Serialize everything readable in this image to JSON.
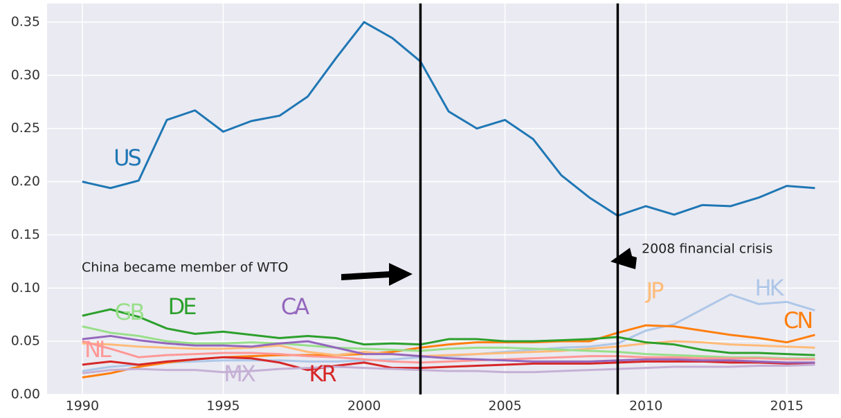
{
  "chart_data": {
    "type": "line",
    "x": [
      1990,
      1991,
      1992,
      1993,
      1994,
      1995,
      1996,
      1997,
      1998,
      1999,
      2000,
      2001,
      2002,
      2003,
      2004,
      2005,
      2006,
      2007,
      2008,
      2009,
      2010,
      2011,
      2012,
      2013,
      2014,
      2015,
      2016
    ],
    "series": [
      {
        "name": "US",
        "color": "#1f77b4",
        "values": [
          0.2,
          0.194,
          0.201,
          0.258,
          0.267,
          0.247,
          0.257,
          0.262,
          0.28,
          0.316,
          0.35,
          0.335,
          0.313,
          0.266,
          0.25,
          0.258,
          0.24,
          0.206,
          0.185,
          0.168,
          0.177,
          0.169,
          0.178,
          0.177,
          0.185,
          0.196,
          0.194
        ]
      },
      {
        "name": "HK",
        "color": "#aec7e8",
        "values": [
          0.022,
          0.026,
          0.028,
          0.03,
          0.031,
          0.032,
          0.032,
          0.032,
          0.031,
          0.031,
          0.032,
          0.033,
          0.035,
          0.036,
          0.038,
          0.04,
          0.042,
          0.044,
          0.045,
          0.048,
          0.06,
          0.066,
          0.08,
          0.094,
          0.085,
          0.087,
          0.079
        ]
      },
      {
        "name": "CN",
        "color": "#ff7f0e",
        "values": [
          0.016,
          0.02,
          0.026,
          0.03,
          0.033,
          0.035,
          0.036,
          0.037,
          0.037,
          0.037,
          0.038,
          0.04,
          0.044,
          0.047,
          0.049,
          0.049,
          0.049,
          0.05,
          0.05,
          0.058,
          0.065,
          0.064,
          0.06,
          0.056,
          0.053,
          0.049,
          0.056
        ]
      },
      {
        "name": "JP",
        "color": "#ffbb78",
        "values": [
          0.048,
          0.047,
          0.045,
          0.044,
          0.043,
          0.043,
          0.044,
          0.046,
          0.04,
          0.037,
          0.04,
          0.038,
          0.036,
          0.037,
          0.038,
          0.039,
          0.04,
          0.041,
          0.043,
          0.045,
          0.048,
          0.05,
          0.049,
          0.047,
          0.046,
          0.045,
          0.044
        ]
      },
      {
        "name": "DE",
        "color": "#2ca02c",
        "values": [
          0.074,
          0.08,
          0.073,
          0.062,
          0.057,
          0.059,
          0.056,
          0.053,
          0.055,
          0.053,
          0.047,
          0.048,
          0.047,
          0.052,
          0.052,
          0.05,
          0.05,
          0.051,
          0.052,
          0.054,
          0.049,
          0.047,
          0.042,
          0.039,
          0.039,
          0.038,
          0.037
        ]
      },
      {
        "name": "GB",
        "color": "#98df8a",
        "values": [
          0.064,
          0.058,
          0.055,
          0.05,
          0.048,
          0.048,
          0.049,
          0.048,
          0.046,
          0.044,
          0.043,
          0.042,
          0.041,
          0.043,
          0.044,
          0.044,
          0.043,
          0.042,
          0.041,
          0.04,
          0.038,
          0.037,
          0.036,
          0.035,
          0.035,
          0.034,
          0.034
        ]
      },
      {
        "name": "KR",
        "color": "#d62728",
        "values": [
          0.028,
          0.031,
          0.028,
          0.031,
          0.033,
          0.035,
          0.034,
          0.03,
          0.023,
          0.027,
          0.03,
          0.025,
          0.025,
          0.026,
          0.027,
          0.028,
          0.029,
          0.029,
          0.029,
          0.03,
          0.031,
          0.031,
          0.031,
          0.03,
          0.03,
          0.029,
          0.029
        ]
      },
      {
        "name": "NL",
        "color": "#ff9896",
        "values": [
          0.05,
          0.043,
          0.035,
          0.037,
          0.038,
          0.039,
          0.039,
          0.038,
          0.036,
          0.035,
          0.033,
          0.031,
          0.03,
          0.031,
          0.032,
          0.033,
          0.034,
          0.035,
          0.036,
          0.036,
          0.035,
          0.035,
          0.034,
          0.034,
          0.034,
          0.033,
          0.033
        ]
      },
      {
        "name": "CA",
        "color": "#9467bd",
        "values": [
          0.052,
          0.055,
          0.051,
          0.048,
          0.046,
          0.046,
          0.045,
          0.048,
          0.05,
          0.044,
          0.038,
          0.038,
          0.036,
          0.034,
          0.033,
          0.032,
          0.031,
          0.031,
          0.031,
          0.032,
          0.033,
          0.033,
          0.032,
          0.032,
          0.031,
          0.03,
          0.03
        ]
      },
      {
        "name": "MX",
        "color": "#c5b0d5",
        "values": [
          0.02,
          0.023,
          0.024,
          0.023,
          0.023,
          0.021,
          0.022,
          0.024,
          0.025,
          0.026,
          0.025,
          0.024,
          0.023,
          0.022,
          0.022,
          0.021,
          0.021,
          0.022,
          0.023,
          0.024,
          0.025,
          0.026,
          0.026,
          0.026,
          0.027,
          0.027,
          0.028
        ]
      }
    ],
    "xlim": [
      1988.75,
      2016.85
    ],
    "ylim": [
      0,
      0.3675
    ],
    "xticks": [
      1990,
      1995,
      2000,
      2005,
      2010,
      2015
    ],
    "yticks": [
      {
        "value": 0,
        "label": "0.00"
      },
      {
        "value": 0.05,
        "label": "0.05"
      },
      {
        "value": 0.1,
        "label": "0.10"
      },
      {
        "value": 0.15,
        "label": "0.15"
      },
      {
        "value": 0.2,
        "label": "0.20"
      },
      {
        "value": 0.25,
        "label": "0.25"
      },
      {
        "value": 0.3,
        "label": "0.30"
      },
      {
        "value": 0.35,
        "label": "0.35"
      }
    ],
    "grid": true,
    "vlines": [
      2002,
      2009
    ],
    "annotations": [
      "China became member of WTO",
      "2008 financial crisis"
    ]
  }
}
